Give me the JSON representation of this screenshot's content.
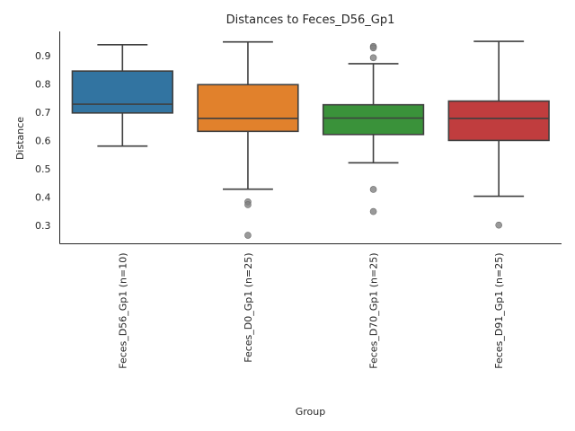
{
  "chart_data": {
    "type": "box",
    "title": "Distances to Feces_D56_Gp1",
    "xlabel": "Group",
    "ylabel": "Distance",
    "ylim": [
      0.235,
      0.985
    ],
    "yticks": [
      "0.3",
      "0.4",
      "0.5",
      "0.6",
      "0.7",
      "0.8",
      "0.9"
    ],
    "grid": false,
    "categories": [
      "Feces_D56_Gp1 (n=10)",
      "Feces_D0_Gp1 (n=25)",
      "Feces_D70_Gp1 (n=25)",
      "Feces_D91_Gp1 (n=25)"
    ],
    "boxes": [
      {
        "color": "#3274a1",
        "whisker_low": 0.58,
        "q1": 0.697,
        "median": 0.728,
        "q3": 0.845,
        "whisker_high": 0.938,
        "outliers": []
      },
      {
        "color": "#e1812c",
        "whisker_low": 0.428,
        "q1": 0.632,
        "median": 0.678,
        "q3": 0.797,
        "whisker_high": 0.948,
        "outliers": [
          0.383,
          0.373,
          0.265
        ]
      },
      {
        "color": "#3a923a",
        "whisker_low": 0.521,
        "q1": 0.621,
        "median": 0.679,
        "q3": 0.726,
        "whisker_high": 0.871,
        "outliers": [
          0.932,
          0.927,
          0.892,
          0.427,
          0.349
        ]
      },
      {
        "color": "#c03d3e",
        "whisker_low": 0.403,
        "q1": 0.6,
        "median": 0.678,
        "q3": 0.739,
        "whisker_high": 0.95,
        "outliers": [
          0.301
        ]
      }
    ]
  }
}
